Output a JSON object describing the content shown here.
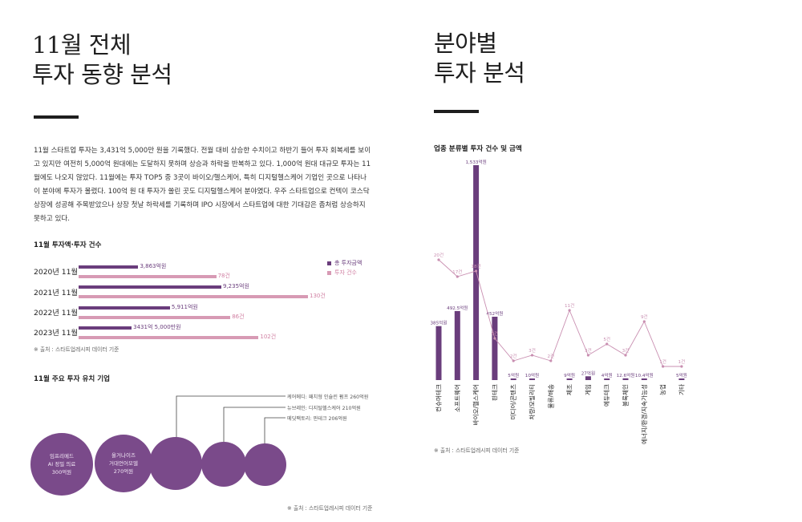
{
  "left": {
    "title_line1": "11월 전체",
    "title_line2": "투자 동향 분석",
    "body": "11월 스타트업 투자는 3,431억 5,000만 원을 기록했다. 전월 대비 상승한 수치이고 하반기 들어 투자 회복세를 보이고 있지만 여전히 5,000억 원대에는 도달하지 못하며 상승과 하락을 반복하고 있다. 1,000억 원대 대규모 투자는 11월에도 나오지 않았다. 11월에는 투자 TOP5 중 3곳이 바이오/헬스케어, 특히 디지털헬스케어 기업인 곳으로 나타나 이 분야에 투자가 몰렸다. 100억 원 대 투자가 쏠린 곳도 디지털헬스케어 분야였다. 우주 스타트업으로 컨텍이 코스닥 상장에 성공해 주목받았으나 상장 첫날 하락세를 기록하며 IPO 시장에서 스타트업에 대한 기대감은 좀처럼 상승하지 못하고 있다.",
    "yearly_title": "11월 투자액·투자 건수",
    "legend_amount": "총 투자금액",
    "legend_count": "투자 건수",
    "yearly": [
      {
        "label": "2020년 11월",
        "amount_label": "3,863억원",
        "amount": 3863,
        "count_label": "78건",
        "count": 78
      },
      {
        "label": "2021년 11월",
        "amount_label": "9,235억원",
        "amount": 9235,
        "count_label": "130건",
        "count": 130
      },
      {
        "label": "2022년 11월",
        "amount_label": "5,911억원",
        "amount": 5911,
        "count_label": "86건",
        "count": 86
      },
      {
        "label": "2023년 11월",
        "amount_label": "3431억 5,000만원",
        "amount": 3431.5,
        "count_label": "102건",
        "count": 102
      }
    ],
    "source1": "※ 출처 : 스타트업레시피 데이터 기준",
    "top_title": "11월 주요 투자 유치 기업",
    "circles": [
      {
        "line1": "임프리메드",
        "line2": "AI 정밀 의료",
        "line3": "300억원"
      },
      {
        "line1": "올거나이즈",
        "line2": "거대언어모델",
        "line3": "270억원"
      },
      {
        "line1": "",
        "line2": "",
        "line3": ""
      },
      {
        "line1": "",
        "line2": "",
        "line3": ""
      },
      {
        "line1": "",
        "line2": "",
        "line3": ""
      }
    ],
    "callouts": [
      "케어메디: 패치형 인슐린 펌프 260억원",
      "뉴브레인: 디지털헬스케어 210억원",
      "메딧팩토리: 핀테크 206억원"
    ],
    "source2": "※ 출처 : 스타트업레시피 데이터 기준"
  },
  "right": {
    "title_line1": "분야별",
    "title_line2": "투자 분석",
    "chart_title": "업종 분류별 투자 건수 및 금액",
    "source": "※ 출처 : 스타트업레시피 데이터 기준"
  },
  "chart_data": {
    "type": "bar",
    "title": "업종 분류별 투자 건수 및 금액",
    "categories": [
      "컨슈머테크",
      "소프트웨어",
      "바이오/헬스케어",
      "핀테크",
      "미디어/콘텐츠",
      "차량/모빌리티",
      "물류/배송",
      "제조",
      "게임",
      "에듀테크",
      "블록체인",
      "에너지/환경/지속가능성",
      "농업",
      "기타"
    ],
    "series": [
      {
        "type": "bar",
        "values": [
          385,
          492.5,
          1533,
          452,
          5,
          10,
          0,
          9,
          27,
          4,
          12.6,
          10.4,
          0,
          5
        ],
        "labels": [
          "385억원",
          "492.5억원",
          "1,533억원",
          "452억원",
          "5억원",
          "10억원",
          "",
          "9억원",
          "27억원",
          "4억원",
          "12.6억원",
          "10.4억원",
          "",
          "5억원"
        ]
      },
      {
        "type": "line",
        "values": [
          20,
          17,
          18,
          6,
          2,
          3,
          2,
          11,
          3,
          5,
          3,
          9,
          1,
          1
        ],
        "labels": [
          "20건",
          "17건",
          "18건",
          "6건",
          "2건",
          "3건",
          "2건",
          "11건",
          "3건",
          "5건",
          "3건",
          "9건",
          "1건",
          "1건"
        ]
      }
    ],
    "colors": {
      "bar": "#6a3d7c",
      "line": "#c98fb1"
    }
  }
}
